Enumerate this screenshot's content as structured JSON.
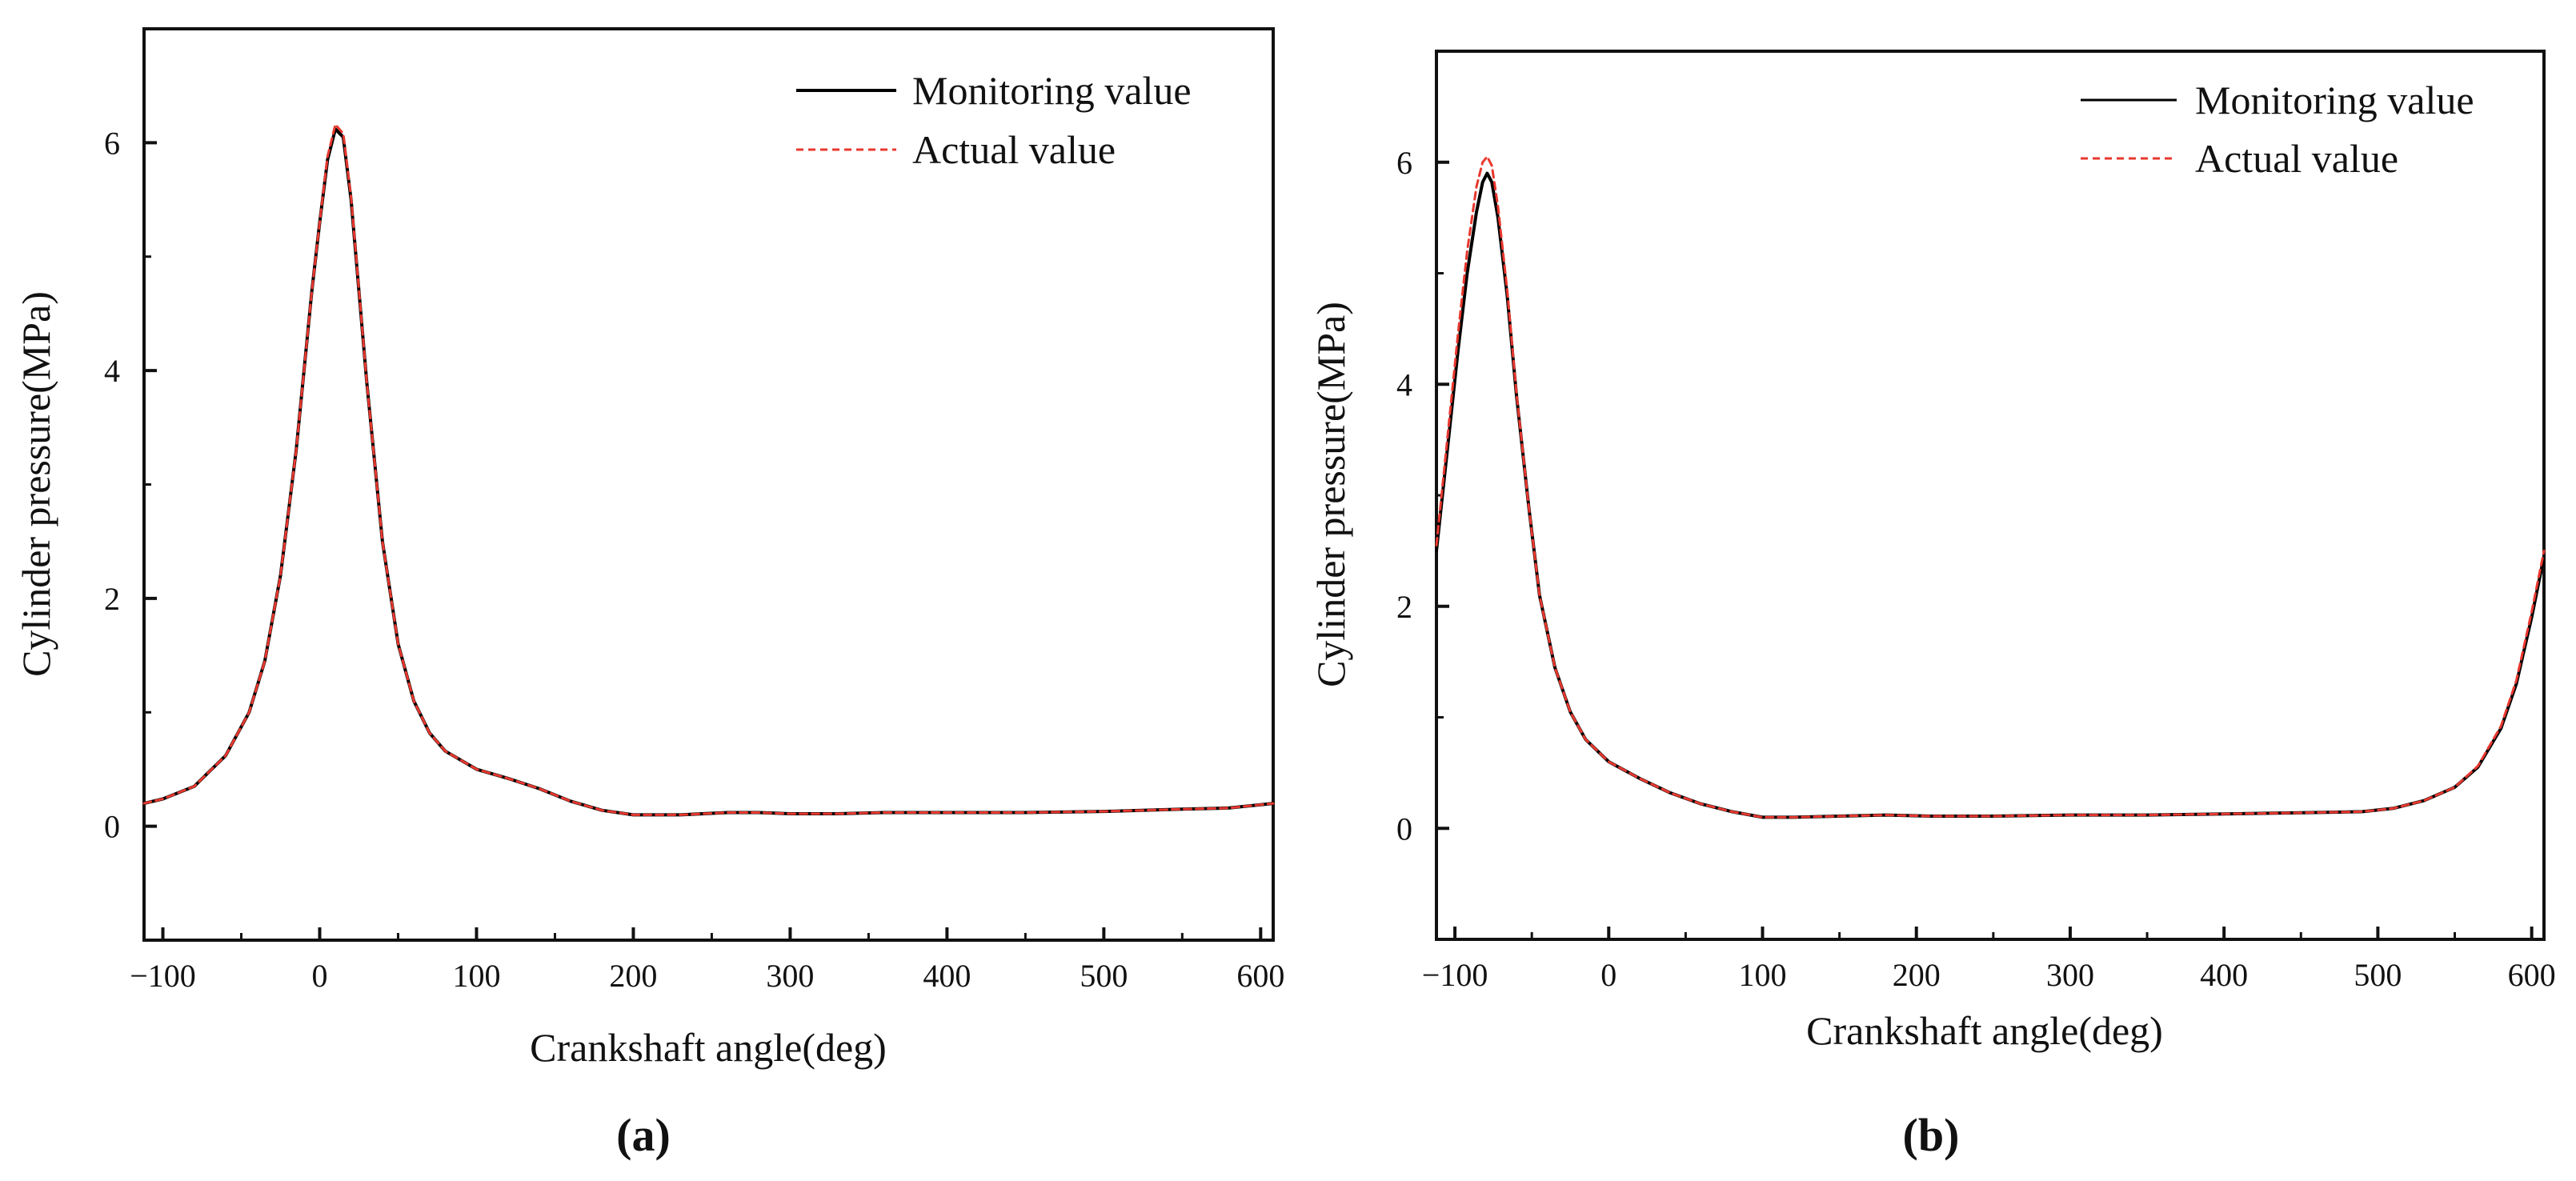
{
  "chart_data": [
    {
      "id": "a",
      "type": "line",
      "panel_label": "(a)",
      "xlabel": "Crankshaft angle(deg)",
      "ylabel": "Cylinder pressure(MPa)",
      "xlim": [
        -112,
        608
      ],
      "ylim": [
        -1,
        7
      ],
      "xticks": [
        -100,
        0,
        100,
        200,
        300,
        400,
        500,
        600
      ],
      "xtick_labels": [
        "−100",
        "0",
        "100",
        "200",
        "300",
        "400",
        "500",
        "600"
      ],
      "yticks": [
        0,
        2,
        4,
        6
      ],
      "ytick_labels": [
        "0",
        "2",
        "4",
        "6"
      ],
      "legend_position": "top-right",
      "series": [
        {
          "name": "Monitoring value",
          "color": "#000000",
          "style": "solid",
          "x": [
            -112,
            -100,
            -80,
            -60,
            -45,
            -35,
            -25,
            -15,
            -5,
            0,
            5,
            10,
            15,
            20,
            30,
            40,
            50,
            60,
            70,
            80,
            100,
            120,
            140,
            160,
            180,
            200,
            230,
            260,
            280,
            300,
            330,
            360,
            400,
            450,
            500,
            550,
            580,
            608
          ],
          "values": [
            0.2,
            0.24,
            0.35,
            0.62,
            1.0,
            1.45,
            2.2,
            3.3,
            4.7,
            5.3,
            5.85,
            6.12,
            6.05,
            5.5,
            3.9,
            2.5,
            1.6,
            1.1,
            0.82,
            0.66,
            0.5,
            0.42,
            0.33,
            0.22,
            0.14,
            0.1,
            0.1,
            0.12,
            0.12,
            0.11,
            0.11,
            0.12,
            0.12,
            0.12,
            0.13,
            0.15,
            0.16,
            0.2
          ]
        },
        {
          "name": "Actual value",
          "color": "#e8382f",
          "style": "dashed",
          "x": [
            -112,
            -100,
            -80,
            -60,
            -45,
            -35,
            -25,
            -15,
            -5,
            0,
            5,
            10,
            15,
            20,
            30,
            40,
            50,
            60,
            70,
            80,
            100,
            120,
            140,
            160,
            180,
            200,
            230,
            260,
            280,
            300,
            330,
            360,
            400,
            450,
            500,
            550,
            580,
            608
          ],
          "values": [
            0.2,
            0.24,
            0.35,
            0.62,
            1.0,
            1.45,
            2.2,
            3.3,
            4.7,
            5.3,
            5.88,
            6.16,
            6.08,
            5.52,
            3.9,
            2.5,
            1.6,
            1.1,
            0.82,
            0.66,
            0.5,
            0.42,
            0.33,
            0.22,
            0.14,
            0.1,
            0.1,
            0.12,
            0.12,
            0.11,
            0.11,
            0.12,
            0.12,
            0.12,
            0.13,
            0.15,
            0.16,
            0.2
          ]
        }
      ]
    },
    {
      "id": "b",
      "type": "line",
      "panel_label": "(b)",
      "xlabel": "Crankshaft angle(deg)",
      "ylabel": "Cylinder pressure(MPa)",
      "xlim": [
        -112,
        608
      ],
      "ylim": [
        -1,
        7
      ],
      "xticks": [
        -100,
        0,
        100,
        200,
        300,
        400,
        500,
        600
      ],
      "xtick_labels": [
        "−100",
        "0",
        "100",
        "200",
        "300",
        "400",
        "500",
        "600"
      ],
      "yticks": [
        0,
        2,
        4,
        6
      ],
      "ytick_labels": [
        "0",
        "2",
        "4",
        "6"
      ],
      "legend_position": "top-right",
      "series": [
        {
          "name": "Monitoring value",
          "color": "#000000",
          "style": "solid",
          "x": [
            -112,
            -105,
            -98,
            -92,
            -86,
            -82,
            -79,
            -76,
            -72,
            -66,
            -60,
            -52,
            -45,
            -35,
            -25,
            -15,
            0,
            20,
            40,
            60,
            80,
            100,
            120,
            150,
            180,
            210,
            250,
            300,
            350,
            400,
            450,
            490,
            510,
            530,
            550,
            565,
            580,
            590,
            600,
            608
          ],
          "values": [
            2.5,
            3.4,
            4.3,
            5.0,
            5.55,
            5.82,
            5.9,
            5.82,
            5.5,
            4.8,
            3.9,
            2.9,
            2.1,
            1.45,
            1.05,
            0.8,
            0.6,
            0.45,
            0.32,
            0.22,
            0.15,
            0.1,
            0.1,
            0.11,
            0.12,
            0.11,
            0.11,
            0.12,
            0.12,
            0.13,
            0.14,
            0.15,
            0.18,
            0.25,
            0.37,
            0.55,
            0.9,
            1.3,
            1.9,
            2.45
          ]
        },
        {
          "name": "Actual value",
          "color": "#e8382f",
          "style": "dashed",
          "x": [
            -112,
            -105,
            -98,
            -92,
            -86,
            -82,
            -79,
            -76,
            -72,
            -66,
            -60,
            -52,
            -45,
            -35,
            -25,
            -15,
            0,
            20,
            40,
            60,
            80,
            100,
            120,
            150,
            180,
            210,
            250,
            300,
            350,
            400,
            450,
            490,
            510,
            530,
            550,
            565,
            580,
            590,
            600,
            608
          ],
          "values": [
            2.55,
            3.5,
            4.45,
            5.2,
            5.78,
            6.0,
            6.05,
            5.97,
            5.6,
            4.85,
            3.92,
            2.9,
            2.1,
            1.45,
            1.05,
            0.8,
            0.6,
            0.45,
            0.32,
            0.22,
            0.15,
            0.1,
            0.1,
            0.11,
            0.12,
            0.11,
            0.11,
            0.12,
            0.12,
            0.13,
            0.14,
            0.15,
            0.18,
            0.25,
            0.37,
            0.56,
            0.92,
            1.33,
            1.95,
            2.5
          ]
        }
      ]
    }
  ]
}
